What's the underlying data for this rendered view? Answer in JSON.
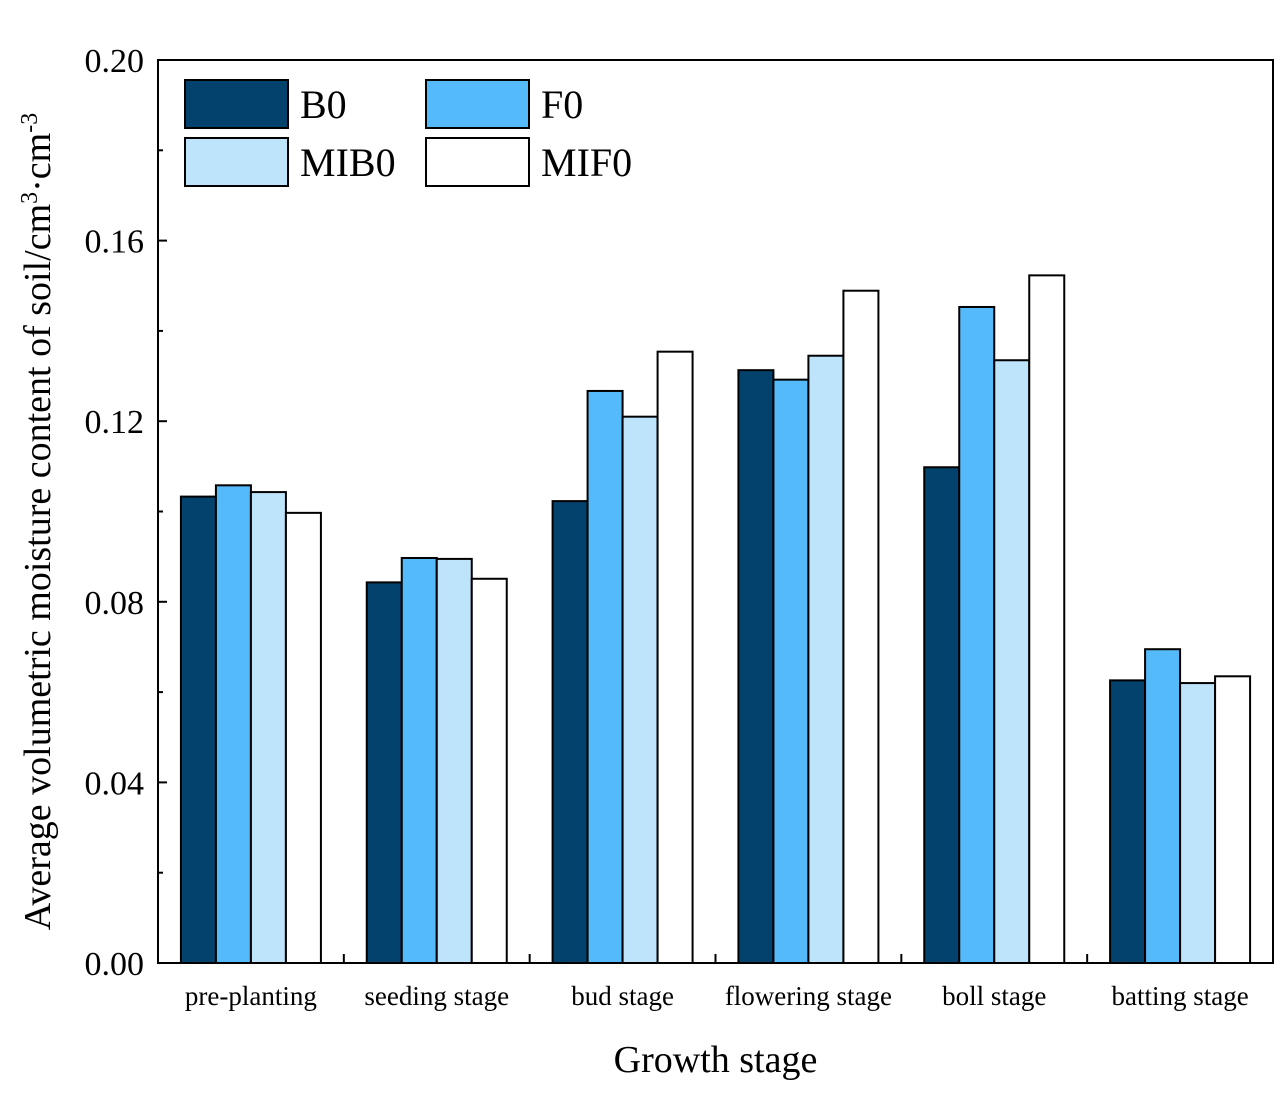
{
  "chart_data": {
    "type": "bar",
    "title": "",
    "xlabel": "Growth stage",
    "ylabel": {
      "main": "Average volumetric moisture content of soil/cm",
      "sup1": "3",
      "mid": "·cm",
      "sup2": "-3"
    },
    "ylim": [
      0,
      0.2
    ],
    "yticks": [
      "0.00",
      "0.04",
      "0.08",
      "0.12",
      "0.16",
      "0.20"
    ],
    "grid": false,
    "legend_position": "top-left",
    "categories": [
      "pre-planting",
      "seeding stage",
      "bud stage",
      "flowering stage",
      "boll stage",
      "batting stage"
    ],
    "series": [
      {
        "name": "B0",
        "color": "#02426c",
        "values": [
          0.1033,
          0.0843,
          0.1023,
          0.1313,
          0.1098,
          0.0626
        ]
      },
      {
        "name": "F0",
        "color": "#55baf9",
        "values": [
          0.1058,
          0.0897,
          0.1267,
          0.1292,
          0.1453,
          0.0695
        ]
      },
      {
        "name": "MIB0",
        "color": "#bde4fb",
        "values": [
          0.1043,
          0.0895,
          0.121,
          0.1345,
          0.1335,
          0.062
        ]
      },
      {
        "name": "MIF0",
        "color": "#ffffff",
        "values": [
          0.0997,
          0.0851,
          0.1354,
          0.1489,
          0.1523,
          0.0635
        ]
      }
    ]
  }
}
